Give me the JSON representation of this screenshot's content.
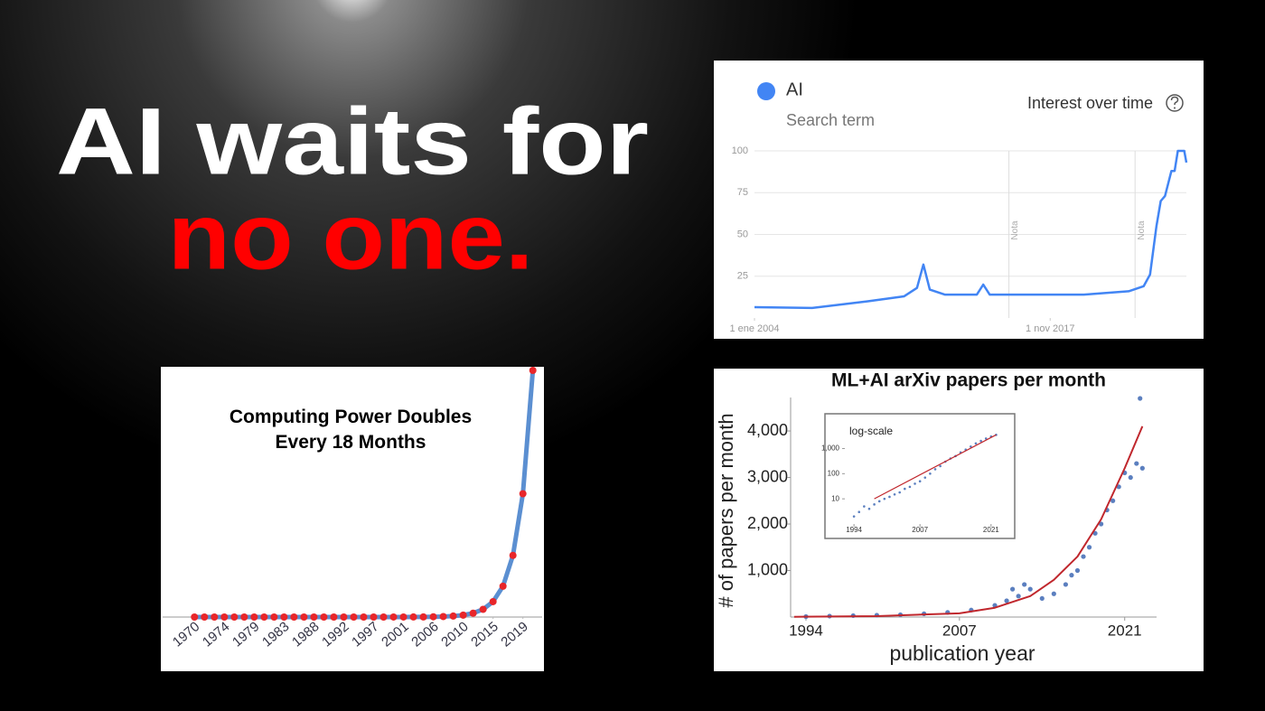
{
  "headline": {
    "line1": "AI waits for",
    "line2": "no one."
  },
  "chart_data": [
    {
      "type": "line",
      "title": "Interest over time",
      "subtitle": "Search term",
      "series": [
        {
          "name": "AI",
          "color": "#4285f4",
          "x": [
            2004,
            2006.7,
            2009.3,
            2011,
            2011.6,
            2011.9,
            2012.2,
            2012.9,
            2014.4,
            2014.7,
            2015,
            2017.3,
            2019.4,
            2021.5,
            2022.2,
            2022.5,
            2022.8,
            2023,
            2023.2,
            2023.5,
            2023.65,
            2023.8,
            2024.1,
            2024.2
          ],
          "values": [
            6.5,
            6,
            10,
            13,
            18,
            32,
            17,
            14,
            14,
            20,
            14,
            14,
            14,
            16,
            19,
            26,
            55,
            70,
            73,
            88,
            88,
            100,
            100,
            93
          ]
        }
      ],
      "xlim": [
        2004,
        2024.2
      ],
      "ylim": [
        0,
        100
      ],
      "xticks": [
        {
          "value": 2004,
          "label": "1 ene 2004"
        },
        {
          "value": 2017.83,
          "label": "1 nov 2017"
        }
      ],
      "yticks": [
        25,
        50,
        75,
        100
      ],
      "grid": true,
      "annotations": [
        {
          "text": "Nota",
          "x": 2015.9
        },
        {
          "text": "Nota",
          "x": 2021.8
        }
      ]
    },
    {
      "type": "line",
      "title": "Computing Power Doubles Every 18 Months",
      "series": [
        {
          "color": "#5b8fd1",
          "marker_color": "#e8262a",
          "x": [
            1970,
            1971.5,
            1973,
            1974.5,
            1976,
            1977.5,
            1979,
            1980.5,
            1982,
            1983.5,
            1985,
            1986.5,
            1988,
            1989.5,
            1991,
            1992.5,
            1994,
            1995.5,
            1997,
            1998.5,
            2000,
            2001.5,
            2003,
            2004.5,
            2006,
            2007.5,
            2009,
            2010.5,
            2012,
            2013.5,
            2015,
            2016.5,
            2018,
            2019.5,
            2021
          ],
          "values": [
            1,
            2,
            4,
            8,
            16,
            32,
            64,
            128,
            256,
            512,
            1024,
            2048,
            4096,
            8192,
            16384,
            32768,
            65536,
            131072,
            262144,
            524288,
            1048576,
            2097152,
            4194304,
            8388608,
            16777216,
            33554432,
            67108864,
            134217728,
            268435456,
            536870912,
            1073741824,
            2147483648,
            4294967296,
            8589934592,
            17179869184
          ]
        }
      ],
      "xlim": [
        1965.2,
        2022.4
      ],
      "ylim": [
        0,
        17179869184
      ],
      "xticks": [
        1970,
        {
          "value": 1974.5,
          "label": "1974"
        },
        1979,
        {
          "value": 1983.5,
          "label": "1983"
        },
        1988,
        {
          "value": 1992.5,
          "label": "1992"
        },
        1997,
        {
          "value": 2001.5,
          "label": "2001"
        },
        2006,
        {
          "value": 2010.5,
          "label": "2010"
        },
        2015,
        {
          "value": 2019.5,
          "label": "2019"
        }
      ]
    },
    {
      "type": "scatter",
      "title": "ML+AI arXiv papers per month",
      "xlabel": "publication year",
      "ylabel": "# of papers per month",
      "series": [
        {
          "type": "scatter",
          "color": "#5b7fbf",
          "x": [
            1994,
            1996,
            1998,
            2000,
            2002,
            2004,
            2006,
            2008,
            2010,
            2011,
            2011.5,
            2012,
            2012.5,
            2013,
            2014,
            2015,
            2016,
            2016.5,
            2017,
            2017.5,
            2018,
            2018.5,
            2019,
            2019.5,
            2020,
            2020.5,
            2021,
            2021.5,
            2022,
            2022.3,
            2022.5
          ],
          "values": [
            10,
            20,
            30,
            40,
            50,
            70,
            100,
            150,
            250,
            350,
            600,
            450,
            700,
            600,
            400,
            500,
            700,
            900,
            1000,
            1300,
            1500,
            1800,
            2000,
            2300,
            2500,
            2800,
            3100,
            3000,
            3300,
            4700,
            3200
          ]
        },
        {
          "type": "line",
          "color": "#c0272d",
          "x": [
            1993,
            2000,
            2007,
            2010,
            2013,
            2015,
            2017,
            2019,
            2021,
            2022.5
          ],
          "values": [
            5,
            20,
            80,
            200,
            450,
            800,
            1300,
            2100,
            3200,
            4100
          ]
        }
      ],
      "xlim": [
        1992.7,
        2023.7
      ],
      "ylim": [
        0,
        4700
      ],
      "xticks": [
        1994,
        2007,
        2021
      ],
      "yticks": [
        {
          "value": 1000,
          "label": "1,000"
        },
        {
          "value": 2000,
          "label": "2,000"
        },
        {
          "value": 3000,
          "label": "3,000"
        },
        {
          "value": 4000,
          "label": "4,000"
        }
      ]
    },
    {
      "type": "scatter",
      "title": "log-scale",
      "log_scale": true,
      "series": [
        {
          "type": "scatter",
          "color": "#5b7fbf",
          "x": [
            1994,
            1995,
            1996,
            1997,
            1998,
            1999,
            2000,
            2001,
            2002,
            2003,
            2004,
            2005,
            2006,
            2007,
            2008,
            2009,
            2010,
            2011,
            2012,
            2013,
            2014,
            2015,
            2016,
            2017,
            2018,
            2019,
            2020,
            2021,
            2022
          ],
          "values": [
            2,
            3,
            5,
            4,
            6,
            8,
            10,
            12,
            15,
            18,
            25,
            30,
            40,
            50,
            70,
            100,
            150,
            200,
            300,
            400,
            500,
            700,
            900,
            1200,
            1600,
            2000,
            2500,
            3000,
            3500
          ]
        },
        {
          "type": "line",
          "color": "#c0272d",
          "x": [
            1998,
            2022
          ],
          "values": [
            10,
            3500
          ]
        }
      ],
      "xlim": [
        1992.2,
        2023.7
      ],
      "ylim": [
        1,
        5000
      ],
      "xticks": [
        1994,
        2007,
        2021
      ],
      "yticks": [
        10,
        100,
        {
          "value": 1000,
          "label": "1,000"
        }
      ]
    }
  ]
}
